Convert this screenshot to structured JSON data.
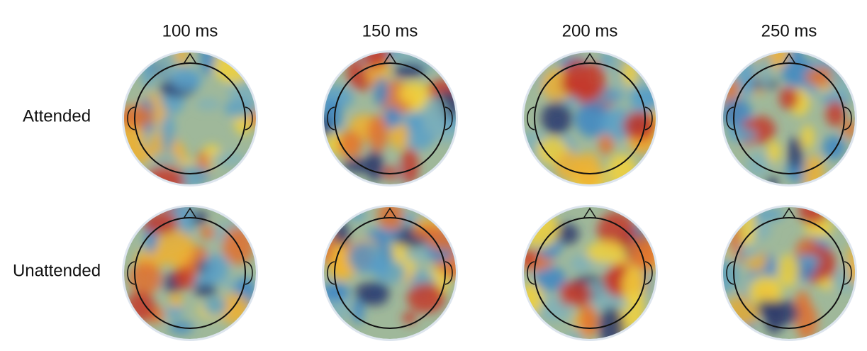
{
  "columns": [
    "100 ms",
    "150 ms",
    "200 ms",
    "250 ms"
  ],
  "rows": [
    "Attended",
    "Unattended"
  ]
}
